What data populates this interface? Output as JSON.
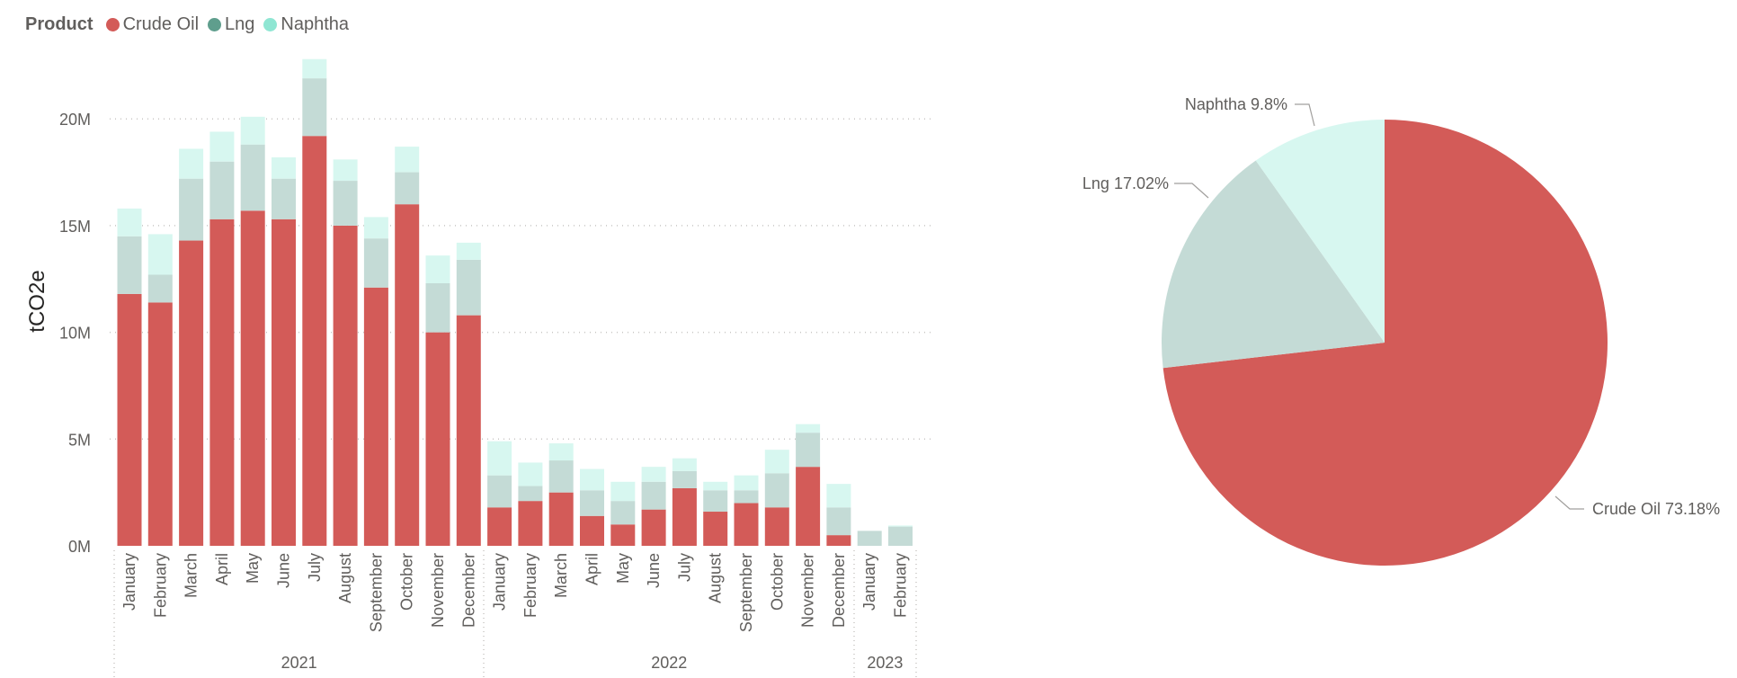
{
  "legend": {
    "title": "Product",
    "items": [
      {
        "label": "Crude Oil",
        "color": "#D35B58"
      },
      {
        "label": "Lng",
        "color": "#5F9E8D"
      },
      {
        "label": "Naphtha",
        "color": "#8FE6D3"
      }
    ]
  },
  "chart_data": [
    {
      "type": "bar",
      "stacked": true,
      "ylabel": "tCO2e",
      "ylim": [
        0,
        23
      ],
      "yticks": [
        0,
        5,
        10,
        15,
        20
      ],
      "ytick_labels": [
        "0M",
        "5M",
        "10M",
        "15M",
        "20M"
      ],
      "grid": true,
      "categories": [
        "January",
        "February",
        "March",
        "April",
        "May",
        "June",
        "July",
        "August",
        "September",
        "October",
        "November",
        "December",
        "January",
        "February",
        "March",
        "April",
        "May",
        "June",
        "July",
        "August",
        "September",
        "October",
        "November",
        "December",
        "January",
        "February"
      ],
      "groups": [
        {
          "label": "2021",
          "count": 12
        },
        {
          "label": "2022",
          "count": 12
        },
        {
          "label": "2023",
          "count": 2
        }
      ],
      "series": [
        {
          "name": "Crude Oil",
          "color": "#D35B58",
          "values": [
            11.8,
            11.4,
            14.3,
            15.3,
            15.7,
            15.3,
            19.2,
            15.0,
            12.1,
            16.0,
            10.0,
            10.8,
            1.8,
            2.1,
            2.5,
            1.4,
            1.0,
            1.7,
            2.7,
            1.6,
            2.0,
            1.8,
            3.7,
            0.5,
            0,
            0
          ]
        },
        {
          "name": "Lng",
          "color": "#C4DBD6",
          "values": [
            2.7,
            1.3,
            2.9,
            2.7,
            3.1,
            1.9,
            2.7,
            2.1,
            2.3,
            1.5,
            2.3,
            2.6,
            1.5,
            0.7,
            1.5,
            1.2,
            1.1,
            1.3,
            0.8,
            1.0,
            0.6,
            1.6,
            1.6,
            1.3,
            0.7,
            0.9
          ]
        },
        {
          "name": "Naphtha",
          "color": "#D7F7F0",
          "values": [
            1.3,
            1.9,
            1.4,
            1.4,
            1.3,
            1.0,
            0.9,
            1.0,
            1.0,
            1.2,
            1.3,
            0.8,
            1.6,
            1.1,
            0.8,
            1.0,
            0.9,
            0.7,
            0.6,
            0.4,
            0.7,
            1.1,
            0.4,
            1.1,
            0,
            0.05
          ]
        }
      ]
    },
    {
      "type": "pie",
      "slices": [
        {
          "label": "Crude Oil",
          "value": 73.18,
          "display": "Crude Oil 73.18%",
          "color": "#D35B58"
        },
        {
          "label": "Lng",
          "value": 17.02,
          "display": "Lng 17.02%",
          "color": "#C4DBD6"
        },
        {
          "label": "Naphtha",
          "value": 9.8,
          "display": "Naphtha 9.8%",
          "color": "#D7F7F0"
        }
      ]
    }
  ]
}
